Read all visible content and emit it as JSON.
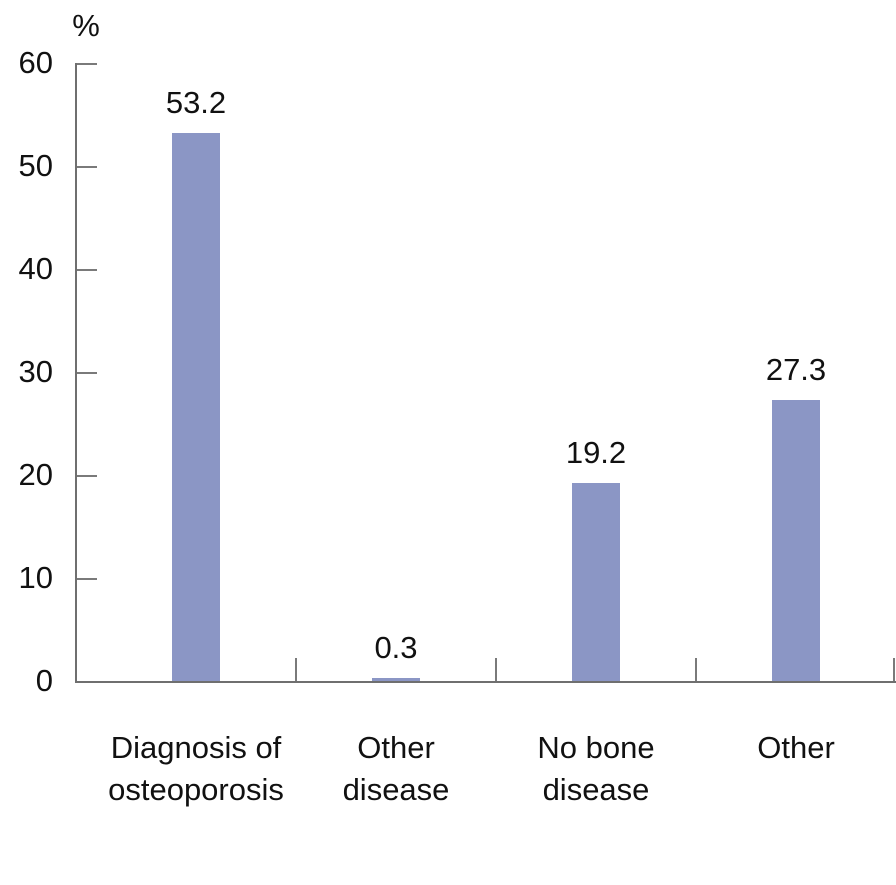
{
  "chart_data": {
    "type": "bar",
    "title": "",
    "unit_label": "%",
    "categories": [
      "Diagnosis of osteoporosis",
      "Other disease",
      "No bone disease",
      "Other"
    ],
    "category_lines": [
      [
        "Diagnosis of",
        "osteoporosis"
      ],
      [
        "Other",
        "disease"
      ],
      [
        "No bone",
        "disease"
      ],
      [
        "Other"
      ]
    ],
    "values": [
      53.2,
      0.3,
      19.2,
      27.3
    ],
    "value_labels": [
      "53.2",
      "0.3",
      "19.2",
      "27.3"
    ],
    "xlabel": "",
    "ylabel": "%",
    "yticks": [
      0,
      10,
      20,
      30,
      40,
      50,
      60
    ],
    "ylim": [
      0,
      60
    ],
    "grid": false,
    "legend_position": "none",
    "colors": {
      "bar": "#8b96c5",
      "axis": "#6f6f6f",
      "text": "#111111",
      "background": "#ffffff"
    }
  }
}
